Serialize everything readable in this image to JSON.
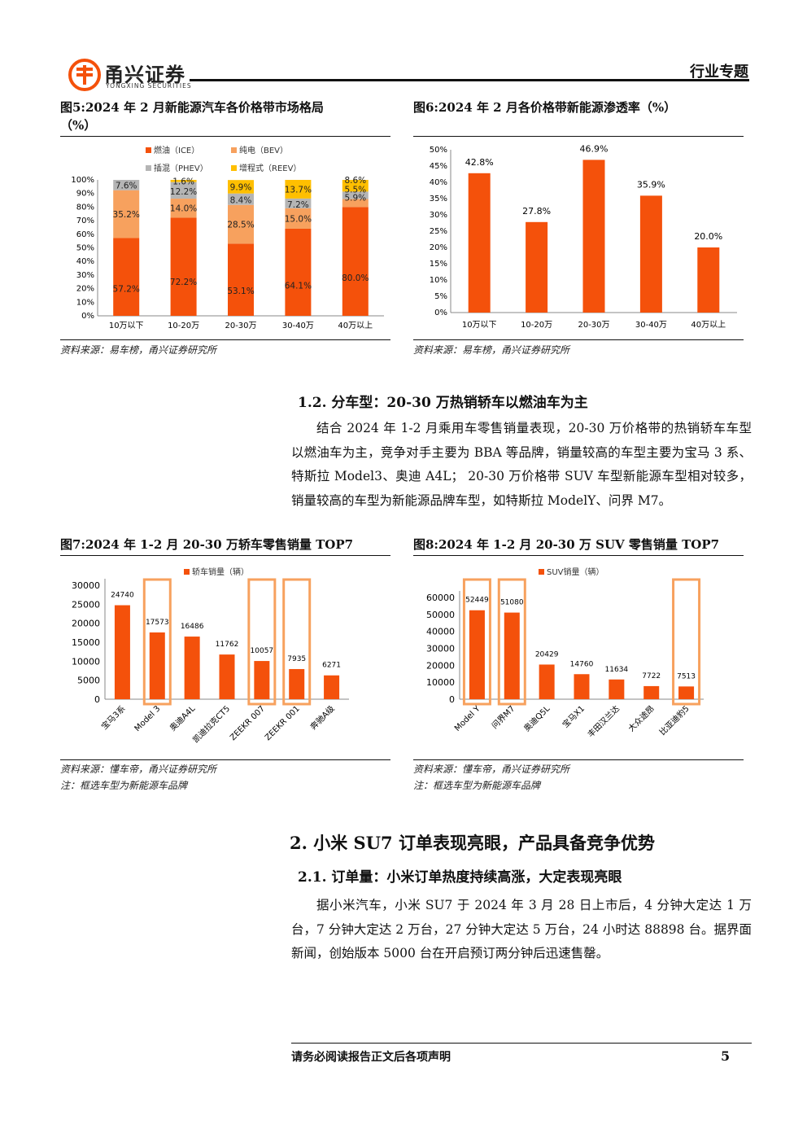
{
  "header": {
    "logo_cn": "甬兴证券",
    "logo_en": "YONGXING SECURITIES",
    "tag": "行业专题"
  },
  "fig5": {
    "title_line1": "图5:2024 年 2 月新能源汽车各价格带市场格局",
    "title_line2": "（%）",
    "source": "资料来源：易车榜，甬兴证券研究所",
    "chart_data": {
      "type": "bar",
      "stacked": true,
      "categories": [
        "10万以下",
        "10-20万",
        "20-30万",
        "30-40万",
        "40万以上"
      ],
      "series": [
        {
          "name": "燃油（ICE）",
          "color": "#F4510B",
          "values": [
            57.2,
            72.2,
            53.1,
            64.1,
            80.0
          ],
          "labels": [
            "57.2%",
            "72.2%",
            "53.1%",
            "64.1%",
            "80.0%"
          ]
        },
        {
          "name": "纯电（BEV）",
          "color": "#F7A15E",
          "values": [
            35.2,
            14.0,
            28.5,
            15.0,
            5.9
          ],
          "labels": [
            "35.2%",
            "14.0%",
            "28.5%",
            "15.0%",
            "5.9%"
          ]
        },
        {
          "name": "插混（PHEV）",
          "color": "#B5B5B5",
          "values": [
            7.6,
            12.2,
            8.4,
            7.2,
            5.5
          ],
          "labels": [
            "7.6%",
            "12.2%",
            "8.4%",
            "7.2%",
            "5.5%"
          ]
        },
        {
          "name": "增程式（REEV）",
          "color": "#FFBF00",
          "values": [
            0.0,
            1.6,
            9.9,
            13.7,
            8.6
          ],
          "labels": [
            "",
            "1.6%",
            "9.9%",
            "13.7%",
            "8.6%"
          ]
        }
      ],
      "yticks": [
        "0%",
        "10%",
        "20%",
        "30%",
        "40%",
        "50%",
        "60%",
        "70%",
        "80%",
        "90%",
        "100%"
      ],
      "ylim": [
        0,
        100
      ],
      "legend": "top"
    }
  },
  "fig6": {
    "title": "图6:2024 年 2 月各价格带新能源渗透率（%）",
    "source": "资料来源：易车榜，甬兴证券研究所",
    "chart_data": {
      "type": "bar",
      "categories": [
        "10万以下",
        "10-20万",
        "20-30万",
        "30-40万",
        "40万以上"
      ],
      "values": [
        42.8,
        27.8,
        46.9,
        35.9,
        20.0
      ],
      "labels": [
        "42.8%",
        "27.8%",
        "46.9%",
        "35.9%",
        "20.0%"
      ],
      "yticks": [
        "0%",
        "5%",
        "10%",
        "15%",
        "20%",
        "25%",
        "30%",
        "35%",
        "40%",
        "45%",
        "50%"
      ],
      "ylim": [
        0,
        50
      ],
      "color": "#F4510B"
    }
  },
  "section12": {
    "heading": "1.2. 分车型：20-30 万热销轿车以燃油车为主",
    "para": "结合 2024 年 1-2 月乘用车零售销量表现，20-30 万价格带的热销轿车车型以燃油车为主，竞争对手主要为 BBA 等品牌，销量较高的车型主要为宝马 3 系、特斯拉 Model3、奥迪 A4L； 20-30 万价格带 SUV 车型新能源车型相对较多，销量较高的车型为新能源品牌车型，如特斯拉 ModelY、问界 M7。"
  },
  "fig7": {
    "title": "图7:2024 年 1-2 月 20-30 万轿车零售销量 TOP7",
    "source": "资料来源：懂车帝，甬兴证券研究所",
    "note": "注：框选车型为新能源车品牌",
    "chart_data": {
      "type": "bar",
      "categories": [
        "宝马3系",
        "Model 3",
        "奥迪A4L",
        "凯迪拉克CT5",
        "ZEEKR 007",
        "ZEEKR 001",
        "奔驰A级"
      ],
      "series": [
        {
          "name": "轿车销量（辆）",
          "values": [
            24740,
            17573,
            16486,
            11762,
            10057,
            7935,
            6271
          ]
        }
      ],
      "labels": [
        "24740",
        "17573",
        "16486",
        "11762",
        "10057",
        "7935",
        "6271"
      ],
      "yticks": [
        "0",
        "5000",
        "10000",
        "15000",
        "20000",
        "25000",
        "30000"
      ],
      "ylim": [
        0,
        30000
      ],
      "highlighted": [
        1,
        4,
        5
      ],
      "color": "#F4510B",
      "highlight_color": "#F7A15E"
    }
  },
  "fig8": {
    "title": "图8:2024 年 1-2 月 20-30 万 SUV 零售销量 TOP7",
    "source": "资料来源：懂车帝，甬兴证券研究所",
    "note": "注：框选车型为新能源车品牌",
    "chart_data": {
      "type": "bar",
      "categories": [
        "Model Y",
        "问界M7",
        "奥迪Q5L",
        "宝马X1",
        "丰田汉兰达",
        "大众途昂",
        "比亚迪豹5"
      ],
      "series": [
        {
          "name": "SUV销量（辆）",
          "values": [
            52449,
            51080,
            20429,
            14760,
            11634,
            7722,
            7513
          ]
        }
      ],
      "labels": [
        "52449",
        "51080",
        "20429",
        "14760",
        "11634",
        "7722",
        "7513"
      ],
      "yticks": [
        "0",
        "10000",
        "20000",
        "30000",
        "40000",
        "50000",
        "60000"
      ],
      "ylim": [
        0,
        60000
      ],
      "highlighted": [
        0,
        1,
        6
      ],
      "color": "#F4510B",
      "highlight_color": "#F7A15E"
    }
  },
  "section2": {
    "heading": "2. 小米 SU7 订单表现亮眼，产品具备竞争优势",
    "sub_heading": "2.1. 订单量：小米订单热度持续高涨，大定表现亮眼",
    "para": "据小米汽车，小米 SU7 于 2024 年 3 月 28 日上市后，4 分钟大定达 1 万台，7 分钟大定达 2 万台，27 分钟大定达 5 万台，24 小时达 88898 台。据界面新闻，创始版本 5000 台在开启预订两分钟后迅速售罄。"
  },
  "footer": {
    "disclaimer": "请务必阅读报告正文后各项声明",
    "page": "5"
  }
}
